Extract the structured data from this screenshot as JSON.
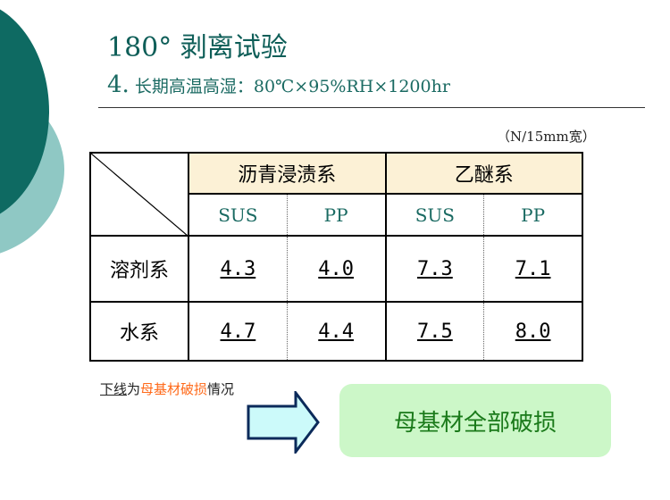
{
  "title": "180° 剥离试验",
  "subtitle": {
    "number": "4.",
    "text": "长期高温高湿：80℃×95%RH×1200hr"
  },
  "unit": "（N/15mm宽）",
  "table": {
    "groups": [
      "沥青浸渍系",
      "乙醚系"
    ],
    "subheaders": [
      "SUS",
      "PP",
      "SUS",
      "PP"
    ],
    "rows": [
      {
        "label": "溶剂系",
        "values": [
          "4.3",
          "4.0",
          "7.3",
          "7.1"
        ]
      },
      {
        "label": "水系",
        "values": [
          "4.7",
          "4.4",
          "7.5",
          "8.0"
        ]
      }
    ]
  },
  "note": {
    "underline": "下线",
    "mid": "为",
    "highlight": "母基材破损",
    "end": "情况"
  },
  "callout": "母基材全部破损",
  "colors": {
    "title": "#0e5e58",
    "header_bg": "#fcf1d6",
    "highlight": "#ff6a1a",
    "callout_bg": "#ccf7c8",
    "callout_text": "#1a7a1a",
    "arrow_fill": "#ccfafa",
    "arrow_stroke": "#0b2a5a"
  }
}
